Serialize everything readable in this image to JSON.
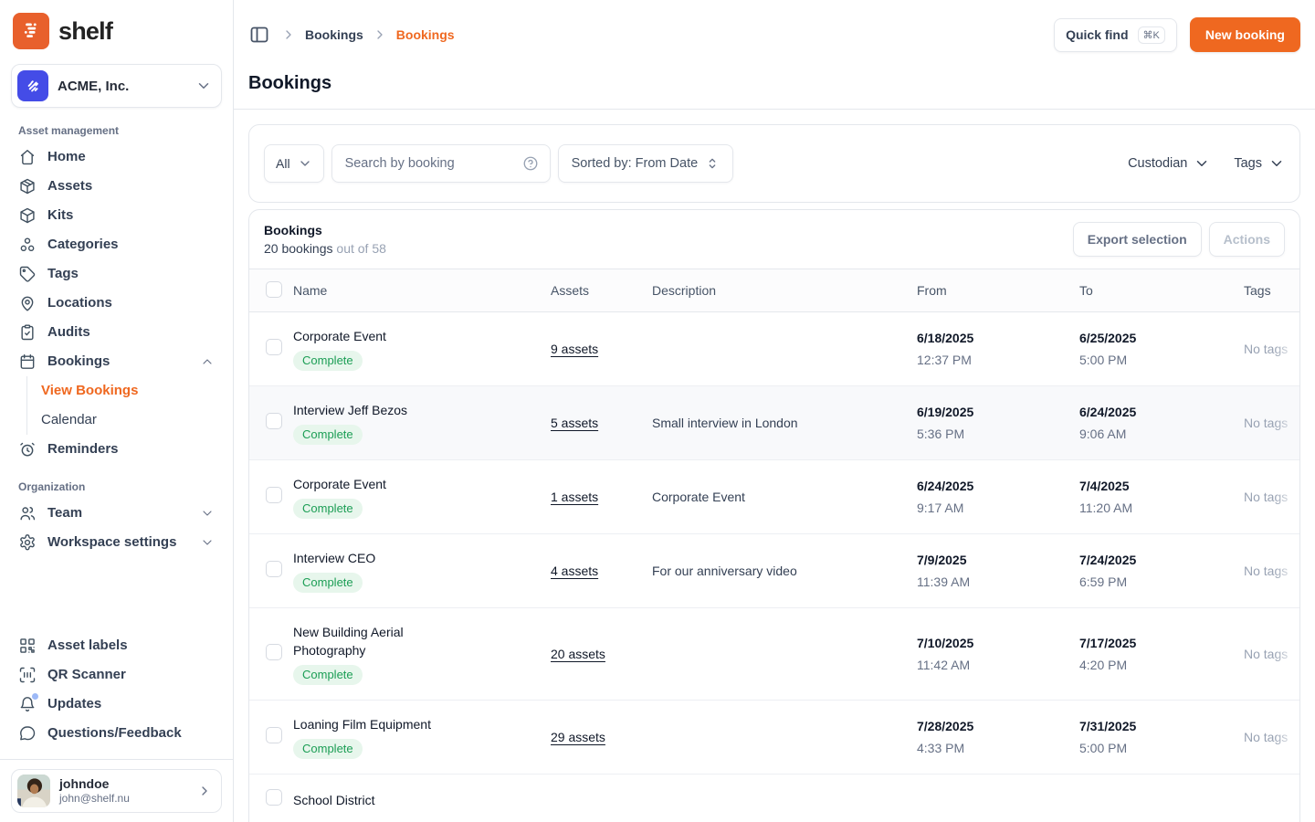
{
  "colors": {
    "accent_orange": "#EF6820",
    "logo_orange": "#E8602C",
    "org_avatar_blue": "#444CE7",
    "badge_green_bg": "#E7F6EC",
    "badge_green_text": "#1C9E55",
    "notification_dot_blue": "#9DB9F7"
  },
  "brand": {
    "name": "shelf"
  },
  "sidebar": {
    "org": {
      "name": "ACME, Inc."
    },
    "sections": [
      {
        "label": "Asset management",
        "items": [
          {
            "label": "Home",
            "icon": "home-icon"
          },
          {
            "label": "Assets",
            "icon": "assets-box-icon"
          },
          {
            "label": "Kits",
            "icon": "kit-box-icon"
          },
          {
            "label": "Categories",
            "icon": "categories-icon"
          },
          {
            "label": "Tags",
            "icon": "tag-icon"
          },
          {
            "label": "Locations",
            "icon": "location-pin-icon"
          },
          {
            "label": "Audits",
            "icon": "clipboard-check-icon"
          },
          {
            "label": "Bookings",
            "icon": "calendar-icon",
            "expanded": true,
            "children": [
              {
                "label": "View Bookings",
                "active": true
              },
              {
                "label": "Calendar"
              }
            ]
          },
          {
            "label": "Reminders",
            "icon": "alarm-clock-icon"
          }
        ]
      },
      {
        "label": "Organization",
        "items": [
          {
            "label": "Team",
            "icon": "users-icon",
            "collapsible": true
          },
          {
            "label": "Workspace settings",
            "icon": "gear-icon",
            "collapsible": true
          }
        ]
      }
    ],
    "footer_items": [
      {
        "label": "Asset labels",
        "icon": "qr-code-icon"
      },
      {
        "label": "QR Scanner",
        "icon": "scan-icon"
      },
      {
        "label": "Updates",
        "icon": "bell-icon",
        "has_notification_dot": true
      },
      {
        "label": "Questions/Feedback",
        "icon": "chat-bubble-icon"
      }
    ],
    "user": {
      "username": "johndoe",
      "email": "john@shelf.nu"
    }
  },
  "topbar": {
    "breadcrumbs": [
      {
        "label": "Bookings",
        "active": false
      },
      {
        "label": "Bookings",
        "active": true
      }
    ],
    "quick_find": {
      "label": "Quick find",
      "shortcut": "⌘K"
    },
    "new_booking_label": "New booking"
  },
  "page": {
    "title": "Bookings"
  },
  "filters": {
    "type_selector": "All",
    "search_placeholder": "Search by booking",
    "sort_label": "Sorted by: From Date",
    "dropdowns": [
      {
        "label": "Custodian"
      },
      {
        "label": "Tags"
      }
    ]
  },
  "table": {
    "title": "Bookings",
    "count": "20 bookings",
    "count_suffix": "out of 58",
    "export_button": "Export selection",
    "actions_button": "Actions",
    "columns": [
      "Name",
      "Assets",
      "Description",
      "From",
      "To",
      "Tags"
    ],
    "rows": [
      {
        "name": "Corporate Event",
        "status": "Complete",
        "assets": "9 assets",
        "description": "",
        "from_date": "6/18/2025",
        "from_time": "12:37 PM",
        "to_date": "6/25/2025",
        "to_time": "5:00 PM",
        "tags": "No tags",
        "highlighted": false
      },
      {
        "name": "Interview Jeff Bezos",
        "status": "Complete",
        "assets": "5 assets",
        "description": "Small interview in London",
        "from_date": "6/19/2025",
        "from_time": "5:36 PM",
        "to_date": "6/24/2025",
        "to_time": "9:06 AM",
        "tags": "No tags",
        "highlighted": true
      },
      {
        "name": "Corporate Event",
        "status": "Complete",
        "assets": "1 assets",
        "description": "Corporate Event",
        "from_date": "6/24/2025",
        "from_time": "9:17 AM",
        "to_date": "7/4/2025",
        "to_time": "11:20 AM",
        "tags": "No tags",
        "highlighted": false
      },
      {
        "name": "Interview CEO",
        "status": "Complete",
        "assets": "4 assets",
        "description": "For our anniversary video",
        "from_date": "7/9/2025",
        "from_time": "11:39 AM",
        "to_date": "7/24/2025",
        "to_time": "6:59 PM",
        "tags": "No tags",
        "highlighted": false
      },
      {
        "name": "New Building Aerial Photography",
        "status": "Complete",
        "assets": "20 assets",
        "description": "",
        "from_date": "7/10/2025",
        "from_time": "11:42 AM",
        "to_date": "7/17/2025",
        "to_time": "4:20 PM",
        "tags": "No tags",
        "highlighted": false
      },
      {
        "name": "Loaning Film Equipment",
        "status": "Complete",
        "assets": "29 assets",
        "description": "",
        "from_date": "7/28/2025",
        "from_time": "4:33 PM",
        "to_date": "7/31/2025",
        "to_time": "5:00 PM",
        "tags": "No tags",
        "highlighted": false
      },
      {
        "name": "School District",
        "status": "",
        "assets": "",
        "description": "",
        "from_date": "",
        "from_time": "",
        "to_date": "",
        "to_time": "",
        "tags": "",
        "highlighted": false
      }
    ]
  }
}
